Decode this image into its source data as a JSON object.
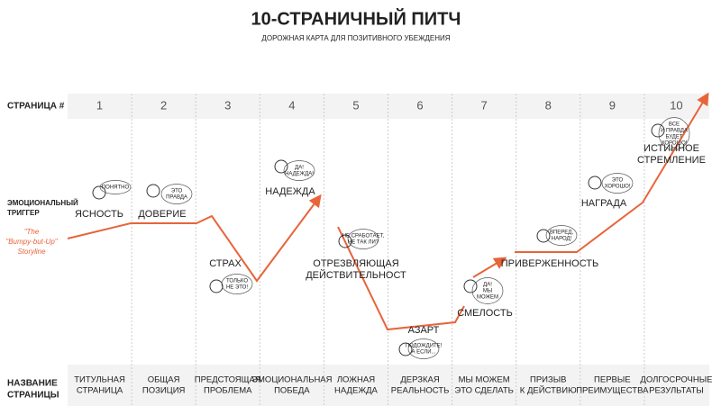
{
  "header": {
    "title": "10-СТРАНИЧНЫЙ ПИТЧ",
    "subtitle": "ДОРОЖНАЯ КАРТА ДЛЯ ПОЗИТИВНОГО УБЕЖДЕНИЯ"
  },
  "row_labels": {
    "page": "СТРАНИЦА #",
    "trigger": [
      "ЭМОЦИОНАЛЬНЫЙ",
      "ТРИГГЕР"
    ],
    "name": [
      "НАЗВАНИЕ",
      "СТРАНИЦЫ"
    ]
  },
  "storyline": [
    "\"The",
    "\"Bumpy-but-Up\"",
    "Storyline"
  ],
  "columns": [
    {
      "number": "1",
      "trigger": [
        "ЯСНОСТЬ"
      ],
      "bubble": [
        "ПОНЯТНО"
      ],
      "name": [
        "ТИТУЛЬНАЯ",
        "СТРАНИЦА"
      ]
    },
    {
      "number": "2",
      "trigger": [
        "ДОВЕРИЕ"
      ],
      "bubble": [
        "ЭТО",
        "ПРАВДА"
      ],
      "name": [
        "ОБЩАЯ",
        "ПОЗИЦИЯ"
      ]
    },
    {
      "number": "3",
      "trigger": [
        "СТРАХ"
      ],
      "bubble": [
        "ТОЛЬКО",
        "НЕ ЭТО!"
      ],
      "name": [
        "ПРЕДСТОЯЩАЯ",
        "ПРОБЛЕМА"
      ]
    },
    {
      "number": "4",
      "trigger": [
        "НАДЕЖДА"
      ],
      "bubble": [
        "ДА!",
        "НАДЕЖДА!"
      ],
      "name": [
        "ЭМОЦИОНАЛЬНАЯ",
        "ПОБЕДА"
      ]
    },
    {
      "number": "5",
      "trigger": [
        "ОТРЕЗВЛЯЮЩАЯ",
        "ДЕЙСТВИТЕЛЬНОСТ"
      ],
      "bubble": [
        "НЕ СРАБОТАЕТ,",
        "НЕ ТАК ЛИ?"
      ],
      "name": [
        "ЛОЖНАЯ",
        "НАДЕЖДА"
      ]
    },
    {
      "number": "6",
      "trigger": [
        "АЗАРТ"
      ],
      "bubble": [
        "ПОДОЖДИТЕ!",
        "А ЕСЛИ..."
      ],
      "name": [
        "ДЕРЗКАЯ",
        "РЕАЛЬНОСТЬ"
      ]
    },
    {
      "number": "7",
      "trigger": [
        "СМЕЛОСТЬ"
      ],
      "bubble": [
        "ДА!",
        "МЫ",
        "МОЖЕМ"
      ],
      "name": [
        "МЫ МОЖЕМ",
        "ЭТО СДЕЛАТЬ"
      ]
    },
    {
      "number": "8",
      "trigger": [
        "ПРИВЕРЖЕННОСТЬ"
      ],
      "bubble": [
        "ВПЕРЕД,",
        "НАРОД!"
      ],
      "name": [
        "ПРИЗЫВ",
        "К ДЕЙСТВИЮ"
      ]
    },
    {
      "number": "9",
      "trigger": [
        "НАГРАДА"
      ],
      "bubble": [
        "ЭТО",
        "ХОРОШО!"
      ],
      "name": [
        "ПЕРВЫЕ",
        "ПРЕИМУЩЕСТВА"
      ]
    },
    {
      "number": "10",
      "trigger": [
        "ИСТИННОЕ",
        "СТРЕМЛЕНИЕ"
      ],
      "bubble": [
        "ВСЕ",
        "И ПРАВДА",
        "БУДЕТ",
        "ХОРОШО!"
      ],
      "name": [
        "ДОЛГОСРОЧНЫЕ",
        "РЕЗУЛЬТАТЫ"
      ]
    }
  ]
}
